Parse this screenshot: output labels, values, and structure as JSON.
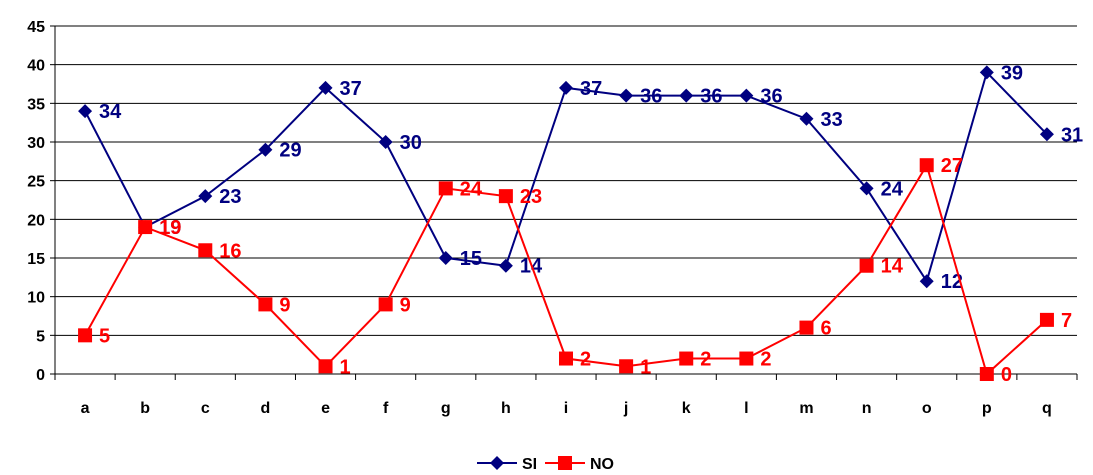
{
  "chart_data": {
    "type": "line",
    "title": "",
    "xlabel": "",
    "ylabel": "",
    "categories": [
      "a",
      "b",
      "c",
      "d",
      "e",
      "f",
      "g",
      "h",
      "i",
      "j",
      "k",
      "l",
      "m",
      "n",
      "o",
      "p",
      "q"
    ],
    "ylim": [
      0,
      45
    ],
    "yticks": [
      "0",
      "5",
      "10",
      "15",
      "20",
      "25",
      "30",
      "35",
      "40",
      "45"
    ],
    "grid": "horizontal",
    "legend_position": "bottom",
    "series": [
      {
        "name": "SI",
        "color": "#000080",
        "marker": "diamond",
        "values": [
          34,
          19,
          23,
          29,
          37,
          30,
          15,
          14,
          37,
          36,
          36,
          36,
          33,
          24,
          12,
          39,
          31
        ]
      },
      {
        "name": "NO",
        "color": "#ff0000",
        "marker": "square",
        "values": [
          5,
          19,
          16,
          9,
          1,
          9,
          24,
          23,
          2,
          1,
          2,
          2,
          6,
          14,
          27,
          0,
          7
        ]
      }
    ]
  }
}
